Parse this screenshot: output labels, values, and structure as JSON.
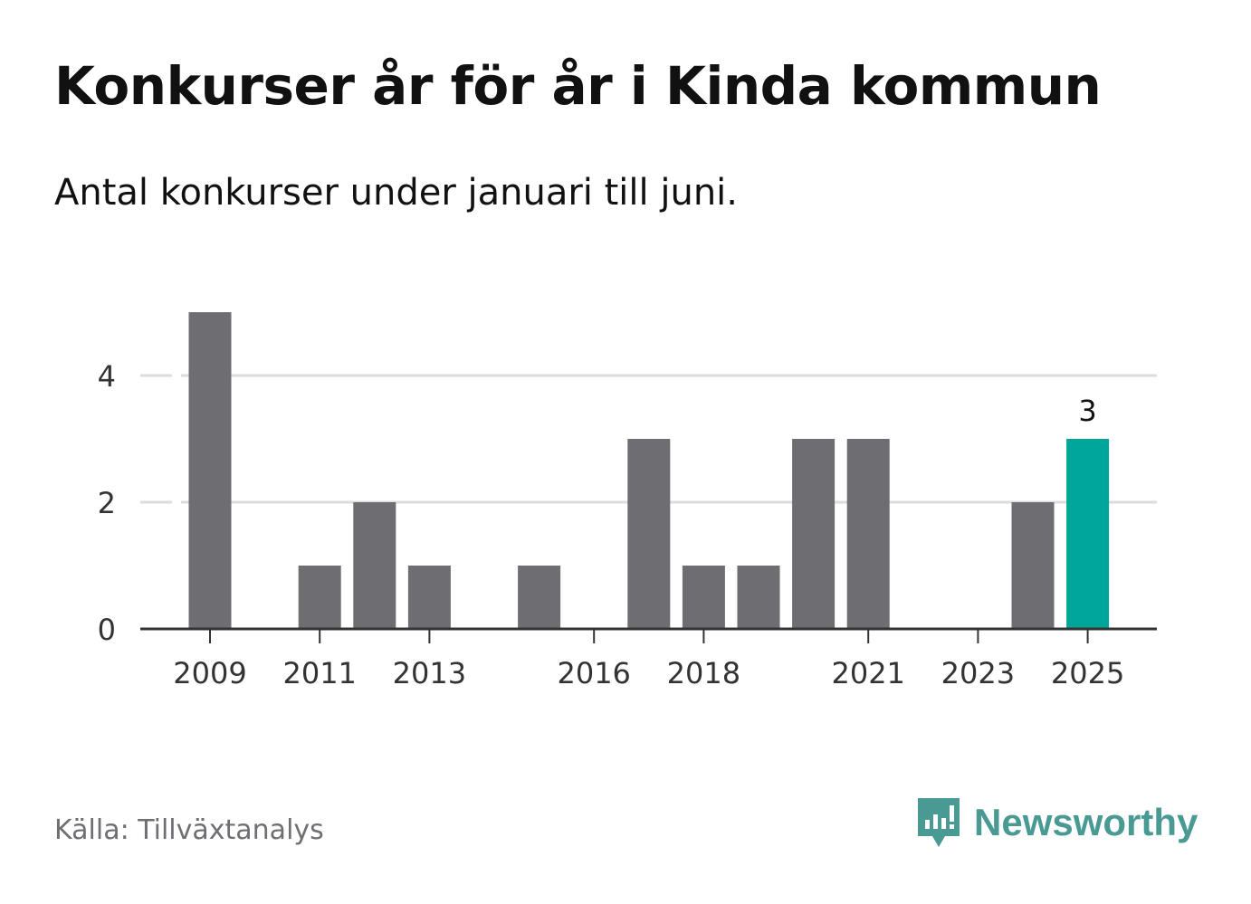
{
  "header": {
    "title": "Konkurser år för år i Kinda kommun",
    "subtitle": "Antal konkurser under januari till juni."
  },
  "footer": {
    "source": "Källa: Tillväxtanalys",
    "brand": "Newsworthy"
  },
  "colors": {
    "bar": "#6e6d72",
    "highlight": "#00a59a",
    "grid": "#dcdcdc",
    "axis": "#333333",
    "brand": "#4a9a94"
  },
  "chart_data": {
    "type": "bar",
    "categories": [
      "2009",
      "2010",
      "2011",
      "2012",
      "2013",
      "2014",
      "2015",
      "2016",
      "2017",
      "2018",
      "2019",
      "2020",
      "2021",
      "2022",
      "2023",
      "2024",
      "2025"
    ],
    "x_tick_labels": [
      "2009",
      "2011",
      "2013",
      "2016",
      "2018",
      "2021",
      "2023",
      "2025"
    ],
    "values": [
      5,
      0,
      1,
      2,
      1,
      0,
      1,
      0,
      3,
      1,
      1,
      3,
      3,
      0,
      0,
      2,
      3
    ],
    "highlight_category": "2025",
    "data_labels": [
      {
        "category": "2025",
        "label": "3"
      }
    ],
    "y_ticks": [
      0,
      2,
      4
    ],
    "ylim": [
      0,
      5
    ],
    "grid": true,
    "legend": "none",
    "xlabel": "",
    "ylabel": ""
  }
}
